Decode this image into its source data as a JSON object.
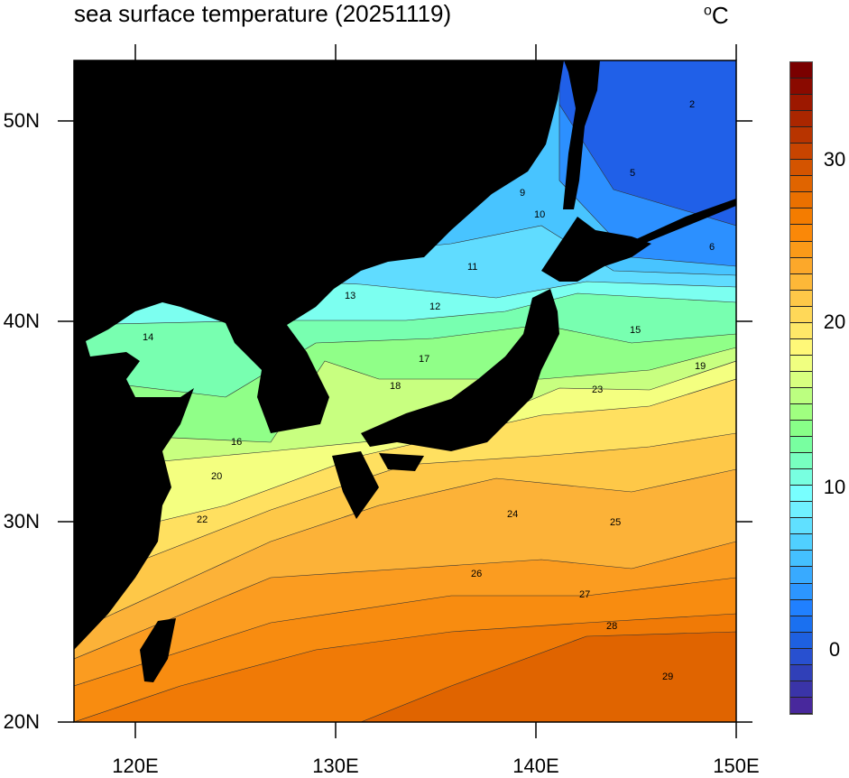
{
  "title": "sea surface temperature (20251119)",
  "unit": "°C",
  "unit_base": "C",
  "unit_sup": "o",
  "x_ticks": [
    "120E",
    "130E",
    "140E",
    "150E"
  ],
  "y_ticks": [
    "50N",
    "40N",
    "30N",
    "20N"
  ],
  "map_extent": {
    "lon": [
      117,
      150
    ],
    "lat": [
      20,
      53
    ]
  },
  "land_color": "#000000",
  "colorbar": {
    "range": [
      -4,
      36
    ],
    "labels": [
      "30",
      "20",
      "10",
      "0"
    ],
    "colors": [
      "#7a0000",
      "#8a0a00",
      "#9c1800",
      "#aa2600",
      "#b83400",
      "#c84400",
      "#d45400",
      "#e06400",
      "#ea7000",
      "#f47c00",
      "#fa8808",
      "#fb9a18",
      "#fca82a",
      "#fdb838",
      "#fec848",
      "#ffd858",
      "#ffe868",
      "#fff878",
      "#f0ff80",
      "#d8ff80",
      "#bcff80",
      "#a0ff80",
      "#88ff88",
      "#78ffa0",
      "#78ffc0",
      "#78ffe0",
      "#78ffff",
      "#70f0ff",
      "#60e0ff",
      "#50d0ff",
      "#44c0ff",
      "#38aaff",
      "#2c96ff",
      "#2080ff",
      "#1a70f0",
      "#1e60e0",
      "#2850d0",
      "#3040b8",
      "#3a34a8",
      "#48289c",
      "#5a1c94",
      "#701088",
      "#800080"
    ]
  },
  "contour_labels": [
    "9",
    "10",
    "11",
    "12",
    "13",
    "14",
    "15",
    "16",
    "17",
    "18",
    "19",
    "20",
    "22",
    "23",
    "24",
    "25",
    "26",
    "27",
    "28",
    "29",
    "5",
    "6",
    "2"
  ]
}
